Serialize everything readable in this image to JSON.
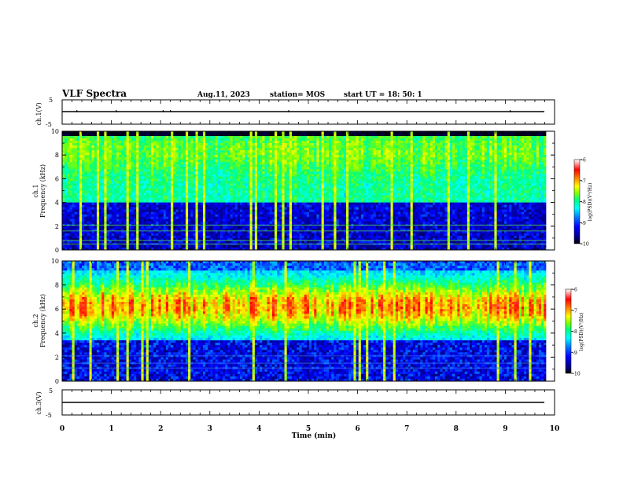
{
  "header": {
    "title": "VLF Spectra",
    "date": "Aug.11, 2023",
    "station": "station= MOS",
    "start": "start  UT =   18: 50: 1"
  },
  "chart_data": [
    {
      "type": "line",
      "panel": "channel-1-voltage",
      "ylabel": "ch.1(V)",
      "ylim": [
        -5,
        5
      ],
      "yticks": [
        "5",
        "-5"
      ],
      "x": [
        0,
        10
      ],
      "y": [
        0,
        0
      ],
      "color": "#000000"
    },
    {
      "type": "heatmap",
      "panel": "channel-1-spectrogram",
      "ylabel": "ch.1\nFrequency (kHz)",
      "ylim": [
        0,
        10
      ],
      "yticks": [
        "0",
        "2",
        "4",
        "6",
        "8",
        "10"
      ],
      "xlim": [
        0,
        9.83
      ],
      "dominant_band_khz": [
        4,
        9.5
      ],
      "colorbar": {
        "label": "log(PSD)(V²/Hz)",
        "range": [
          -10,
          -6
        ],
        "ticks": [
          "-6",
          "-7",
          "-8",
          "-9",
          "-10"
        ]
      }
    },
    {
      "type": "heatmap",
      "panel": "channel-2-spectrogram",
      "ylabel": "ch.2\nFrequency (kHz)",
      "ylim": [
        0,
        10
      ],
      "yticks": [
        "0",
        "2",
        "4",
        "6",
        "8",
        "10"
      ],
      "xlim": [
        0,
        9.83
      ],
      "dominant_band_khz": [
        4.5,
        8
      ],
      "peak_khz": 6.2,
      "colorbar": {
        "label": "log(PSD)(V²/Hz)",
        "range": [
          -10,
          -6
        ],
        "ticks": [
          "-6",
          "-7",
          "-8",
          "-9",
          "-10"
        ]
      }
    },
    {
      "type": "line",
      "panel": "channel-3-voltage",
      "ylabel": "ch.3(V)",
      "ylim": [
        -5,
        5
      ],
      "yticks": [
        "5",
        "-5"
      ],
      "x": [
        0,
        10
      ],
      "y": [
        -1,
        -1
      ],
      "color": "#000000"
    }
  ],
  "xaxis": {
    "label": "Time  (min)",
    "xlim": [
      0,
      10
    ],
    "ticks": [
      "0",
      "1",
      "2",
      "3",
      "4",
      "5",
      "6",
      "7",
      "8",
      "9",
      "10"
    ]
  },
  "colors": {
    "colormap": [
      "#000000",
      "#00008b",
      "#0000ff",
      "#0080ff",
      "#00ffff",
      "#00ff80",
      "#80ff00",
      "#ffff00",
      "#ff8000",
      "#ff0000",
      "#ffb0b0",
      "#ffffff"
    ]
  }
}
